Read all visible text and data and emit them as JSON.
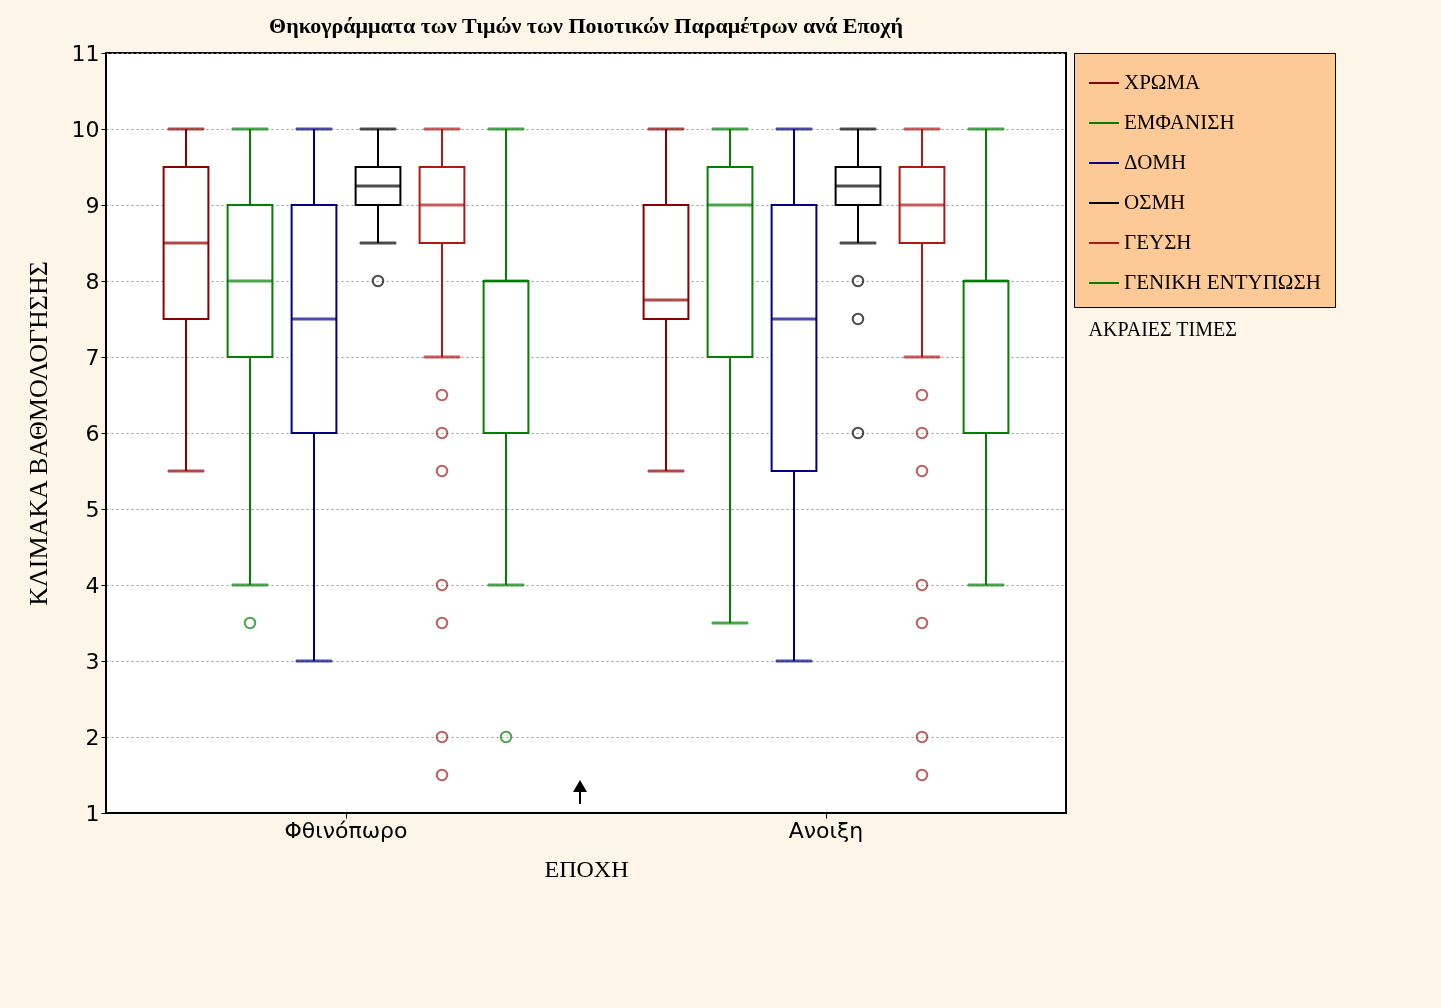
{
  "chart_data": {
    "type": "box",
    "title": "Θηκογράμματα των Τιμών των Ποιοτικών Παραμέτρων ανά Εποχή",
    "xlabel": "ΕΠΟΧΗ",
    "ylabel": "ΚΛΙΜΑΚΑ ΒΑΘΜΟΛΟΓΗΣΗΣ",
    "categories": [
      "Φθινόπωρο",
      "Ανοιξη"
    ],
    "ylim": [
      1,
      11
    ],
    "yticks": [
      1,
      2,
      3,
      4,
      5,
      6,
      7,
      8,
      9,
      10,
      11
    ],
    "grid": "y",
    "legend": "right",
    "annotations": [
      "ΑΚΡΑΙΕΣ ΤΙΜΕΣ"
    ],
    "series": [
      {
        "name": "ΧΡΩΜΑ",
        "color": "#8b0000",
        "boxes": [
          {
            "low": 5.5,
            "q1": 7.5,
            "median": 8.5,
            "q3": 9.5,
            "high": 10
          },
          {
            "low": 5.5,
            "q1": 7.5,
            "median": 7.75,
            "q3": 9,
            "high": 10
          }
        ]
      },
      {
        "name": "ΕΜΦΑΝΙΣΗ",
        "color": "#008000",
        "boxes": [
          {
            "low": 4,
            "q1": 7,
            "median": 8,
            "q3": 9,
            "high": 10,
            "outliers": [
              3.5
            ]
          },
          {
            "low": 3.5,
            "q1": 7,
            "median": 9,
            "q3": 9.5,
            "high": 10
          }
        ]
      },
      {
        "name": "ΔΟΜΗ",
        "color": "#000080",
        "boxes": [
          {
            "low": 3,
            "q1": 6,
            "median": 7.5,
            "q3": 9,
            "high": 10
          },
          {
            "low": 3,
            "q1": 5.5,
            "median": 7.5,
            "q3": 9,
            "high": 10
          }
        ]
      },
      {
        "name": "ΟΣΜΗ",
        "color": "#000000",
        "boxes": [
          {
            "low": 8.5,
            "q1": 9,
            "median": 9.25,
            "q3": 9.5,
            "high": 10,
            "outliers": [
              8
            ]
          },
          {
            "low": 8.5,
            "q1": 9,
            "median": 9.25,
            "q3": 9.5,
            "high": 10,
            "outliers": [
              8,
              7.5,
              6
            ]
          }
        ]
      },
      {
        "name": "ΓΕΥΣΗ",
        "color": "#b01818",
        "boxes": [
          {
            "low": 7,
            "q1": 8.5,
            "median": 9,
            "q3": 9.5,
            "high": 10,
            "outliers": [
              6.5,
              6,
              5.5,
              4,
              3.5,
              2,
              1.5
            ]
          },
          {
            "low": 7,
            "q1": 8.5,
            "median": 9,
            "q3": 9.5,
            "high": 10,
            "outliers": [
              6.5,
              6,
              5.5,
              4,
              3.5,
              2,
              1.5
            ]
          }
        ]
      },
      {
        "name": "ΓΕΝΙΚΗ ΕΝΤΥΠΩΣΗ",
        "color": "#008000",
        "boxes": [
          {
            "low": 4,
            "q1": 6,
            "median": 8,
            "q3": 8,
            "high": 10,
            "outliers": [
              2
            ]
          },
          {
            "low": 4,
            "q1": 6,
            "median": 8,
            "q3": 8,
            "high": 10
          }
        ]
      }
    ]
  }
}
